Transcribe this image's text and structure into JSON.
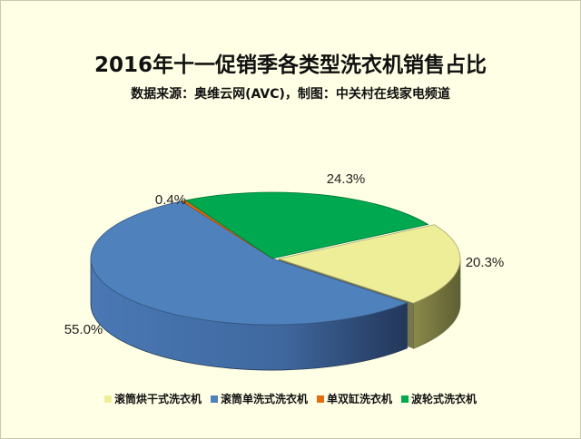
{
  "chart_data": {
    "type": "pie",
    "title": "2016年十一促销季各类型洗衣机销售占比",
    "subtitle": "数据来源：奥维云网(AVC)，制图：中关村在线家电频道",
    "slices": [
      {
        "name": "滚筒烘干式洗衣机",
        "value": 20.3,
        "label": "20.3%",
        "color": "#eeee99"
      },
      {
        "name": "滚筒单洗式洗衣机",
        "value": 55.0,
        "label": "55.0%",
        "color": "#4f81bd"
      },
      {
        "name": "单双缸洗衣机",
        "value": 0.4,
        "label": "0.4%",
        "color": "#e46c0a"
      },
      {
        "name": "波轮式洗衣机",
        "value": 24.3,
        "label": "24.3%",
        "color": "#00a84f"
      }
    ],
    "legend_position": "bottom"
  }
}
